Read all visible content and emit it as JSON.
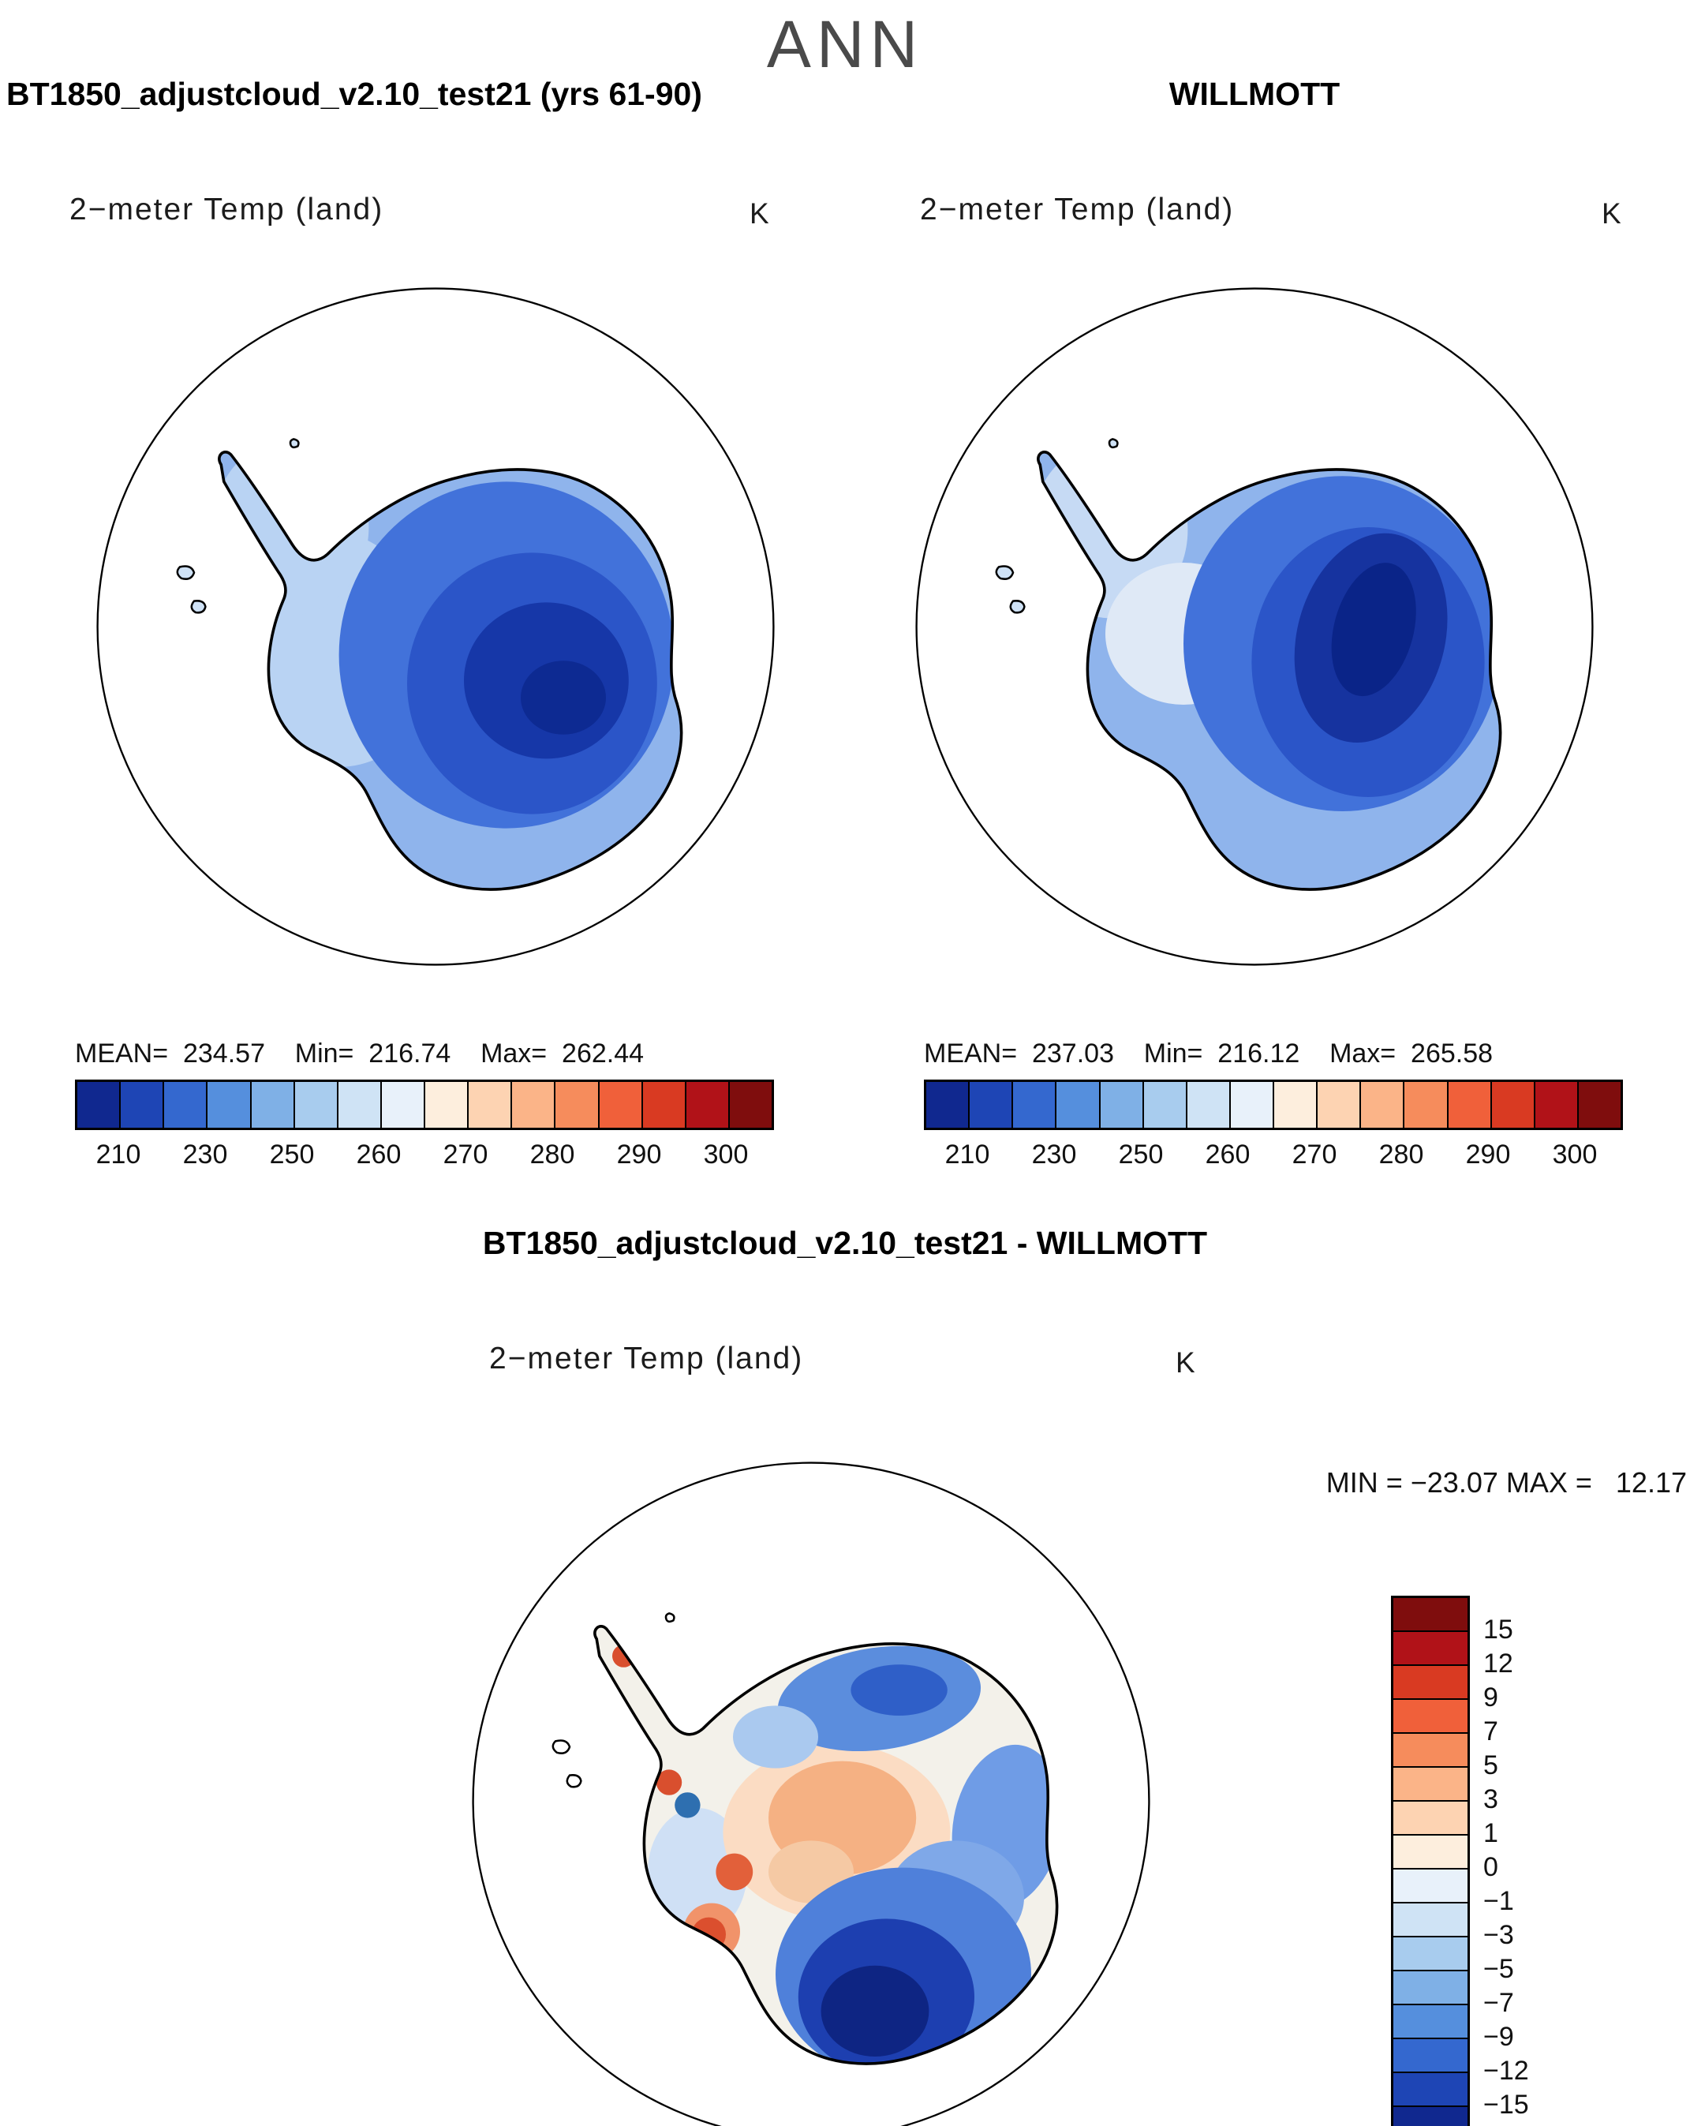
{
  "season": "ANN",
  "panels": {
    "model": {
      "header": "BT1850_adjustcloud_v2.10_test21 (yrs 61-90)",
      "subtitle": "2−meter Temp (land)",
      "units": "K",
      "stats_line": "MEAN=  234.57    Min=  216.74    Max=  262.44"
    },
    "obs": {
      "header": "WILLMOTT",
      "subtitle": "2−meter Temp (land)",
      "units": "K",
      "stats_line": "MEAN=  237.03    Min=  216.12    Max=  265.58"
    },
    "diff": {
      "title": "BT1850_adjustcloud_v2.10_test21 - WILLMOTT",
      "subtitle": "2−meter Temp (land)",
      "units": "K",
      "minmax_line": "MIN = −23.07 MAX =   12.17"
    }
  },
  "colorbar_temp": {
    "colors": [
      "#10288f",
      "#1e45b5",
      "#3468cf",
      "#558fdd",
      "#7fb0e6",
      "#a8ccee",
      "#cfe3f5",
      "#e8f1fa",
      "#fdeedd",
      "#fdd3b2",
      "#fbb488",
      "#f68c5c",
      "#f0603a",
      "#d93a22",
      "#b11218",
      "#7f0d0d"
    ],
    "tick_labels": [
      "210",
      "230",
      "250",
      "260",
      "270",
      "280",
      "290",
      "300"
    ]
  },
  "colorbar_diff": {
    "colors": [
      "#7f0d0d",
      "#b11218",
      "#d93a22",
      "#f0603a",
      "#f68c5c",
      "#fbb488",
      "#fdd3b2",
      "#fdeedd",
      "#e8f1fa",
      "#cfe3f5",
      "#a8ccee",
      "#7fb0e6",
      "#558fdd",
      "#3468cf",
      "#1e45b5",
      "#10288f"
    ],
    "tick_labels": [
      "15",
      "12",
      "9",
      "7",
      "5",
      "3",
      "1",
      "0",
      "−1",
      "−3",
      "−5",
      "−7",
      "−9",
      "−12",
      "−15"
    ]
  },
  "chart_data": [
    {
      "type": "heatmap",
      "title": "BT1850_adjustcloud_v2.10_test21 (yrs 61-90)",
      "season": "ANN",
      "variable": "2−meter Temp (land)",
      "units": "K",
      "projection": "antarctic polar stereographic",
      "stats": {
        "mean": 234.57,
        "min": 216.74,
        "max": 262.44
      },
      "levels": [
        210,
        220,
        230,
        240,
        250,
        255,
        260,
        265,
        270,
        275,
        280,
        285,
        290,
        295,
        300
      ],
      "tick_labels": [
        210,
        230,
        250,
        260,
        270,
        280,
        290,
        300
      ],
      "legend_position": "bottom"
    },
    {
      "type": "heatmap",
      "title": "WILLMOTT",
      "season": "ANN",
      "variable": "2−meter Temp (land)",
      "units": "K",
      "projection": "antarctic polar stereographic",
      "stats": {
        "mean": 237.03,
        "min": 216.12,
        "max": 265.58
      },
      "levels": [
        210,
        220,
        230,
        240,
        250,
        255,
        260,
        265,
        270,
        275,
        280,
        285,
        290,
        295,
        300
      ],
      "tick_labels": [
        210,
        230,
        250,
        260,
        270,
        280,
        290,
        300
      ],
      "legend_position": "bottom"
    },
    {
      "type": "heatmap",
      "title": "BT1850_adjustcloud_v2.10_test21 - WILLMOTT",
      "season": "ANN",
      "variable": "2−meter Temp (land)",
      "units": "K",
      "projection": "antarctic polar stereographic",
      "stats": {
        "min": -23.07,
        "max": 12.17
      },
      "levels": [
        -15,
        -12,
        -9,
        -7,
        -5,
        -3,
        -1,
        0,
        1,
        3,
        5,
        7,
        9,
        12,
        15
      ],
      "legend_position": "right"
    }
  ]
}
